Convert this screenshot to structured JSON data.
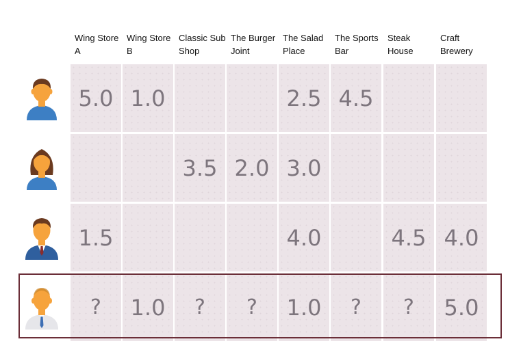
{
  "restaurants": [
    {
      "name": "Wing Store A"
    },
    {
      "name": "Wing Store B"
    },
    {
      "name": "Classic Sub Shop"
    },
    {
      "name": "The Burger Joint"
    },
    {
      "name": "The Salad Place"
    },
    {
      "name": "The Sports Bar"
    },
    {
      "name": "Steak House"
    },
    {
      "name": "Craft Brewery"
    }
  ],
  "users": [
    {
      "avatar_icon": "man-avatar-icon",
      "ratings": [
        "5.0",
        "1.0",
        "",
        "",
        "2.5",
        "4.5",
        "",
        ""
      ]
    },
    {
      "avatar_icon": "woman-avatar-icon",
      "ratings": [
        "",
        "",
        "3.5",
        "2.0",
        "3.0",
        "",
        "",
        ""
      ]
    },
    {
      "avatar_icon": "businessman-avatar-icon",
      "ratings": [
        "1.5",
        "",
        "",
        "",
        "4.0",
        "",
        "4.5",
        "4.0"
      ]
    },
    {
      "avatar_icon": "bald-man-avatar-icon",
      "ratings": [
        "?",
        "1.0",
        "?",
        "?",
        "1.0",
        "?",
        "?",
        "5.0"
      ],
      "highlighted": true
    }
  ],
  "colors": {
    "cell_bg": "#ece4e8",
    "rating_text": "#7d757d",
    "highlight_border": "#6b2e38",
    "skin": "#f6a33c",
    "shirt_blue": "#3d7fc4"
  }
}
